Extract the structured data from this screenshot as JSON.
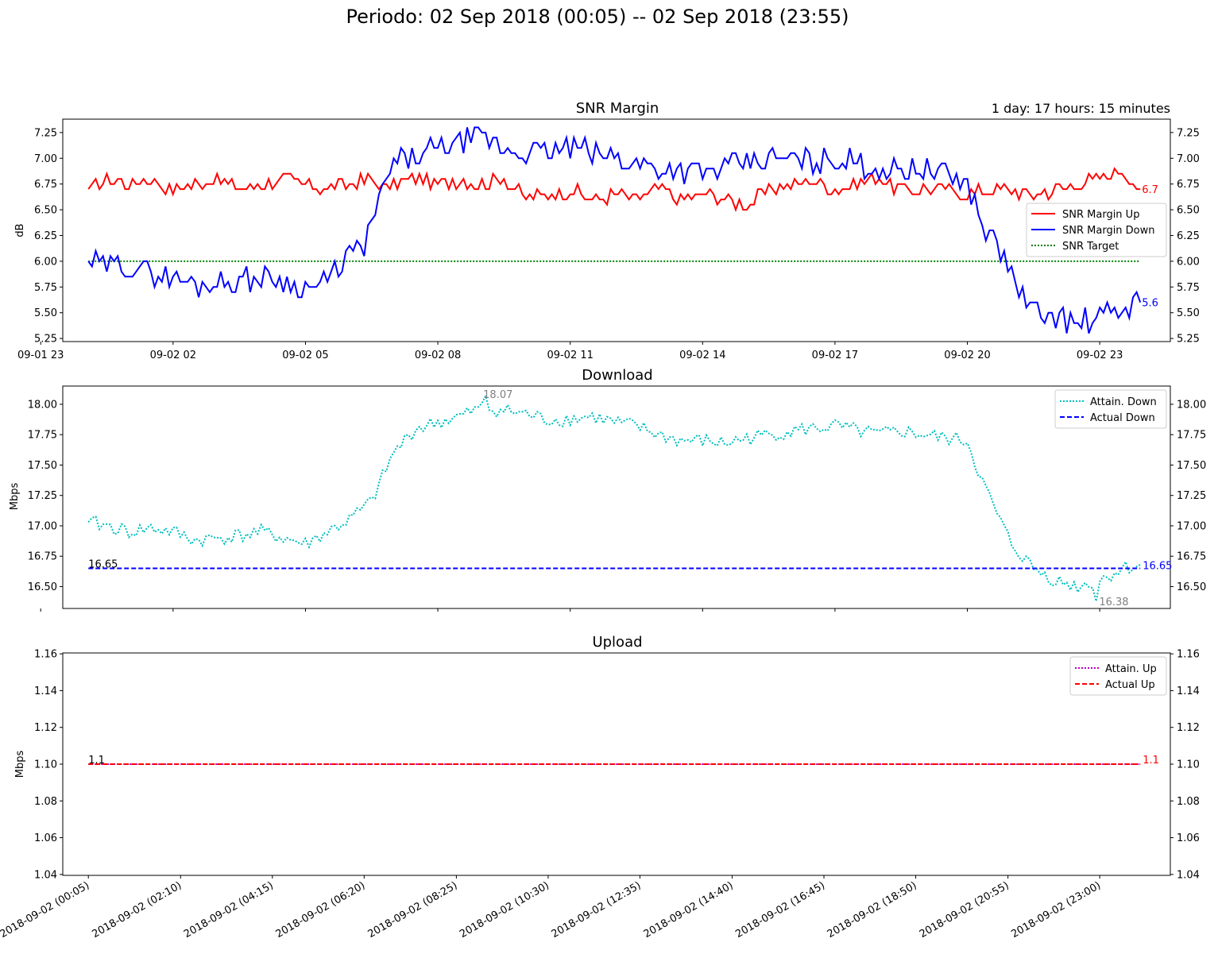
{
  "suptitle": "Periodo: 02 Sep 2018 (00:05) -- 02 Sep 2018 (23:55)",
  "colors": {
    "snr_up": "#ff0000",
    "snr_down": "#0000ff",
    "snr_target": "#008000",
    "attain_down": "#00bfbf",
    "actual_down": "#0000ff",
    "attain_up": "#bf00bf",
    "actual_up": "#ff0000",
    "annot_gray": "#808080"
  },
  "chart_data": [
    {
      "type": "line",
      "title": "SNR Margin",
      "uptime_label": "1 day: 17 hours: 15 minutes",
      "ylabel": "dB",
      "xlim": [
        -0.5,
        24.6
      ],
      "ylim": [
        5.22,
        7.38
      ],
      "xticks": [
        -1,
        2,
        5,
        8,
        11,
        14,
        17,
        20,
        23
      ],
      "xticklabels": [
        "09-01 23",
        "09-02 02",
        "09-02 05",
        "09-02 08",
        "09-02 11",
        "09-02 14",
        "09-02 17",
        "09-02 20",
        "09-02 23"
      ],
      "yticks": [
        5.25,
        5.5,
        5.75,
        6.0,
        6.25,
        6.5,
        6.75,
        7.0,
        7.25
      ],
      "yticklabels": [
        "5.25",
        "5.50",
        "5.75",
        "6.00",
        "6.25",
        "6.50",
        "6.75",
        "7.00",
        "7.25"
      ],
      "legend": [
        "SNR Margin Up",
        "SNR Margin Down",
        "SNR Target"
      ],
      "end_labels": {
        "up": "6.7",
        "down": "5.6"
      },
      "series": [
        {
          "name": "SNR Margin Up",
          "style": "solid",
          "x": [
            0.08,
            0.5,
            1.0,
            1.5,
            2.0,
            2.5,
            3.0,
            3.5,
            4.0,
            4.5,
            5.0,
            5.5,
            6.0,
            6.5,
            6.8,
            7.0,
            7.5,
            8.0,
            8.5,
            9.0,
            9.5,
            10.0,
            10.5,
            11.0,
            11.5,
            12.0,
            12.5,
            13.0,
            13.5,
            14.0,
            14.5,
            15.0,
            15.5,
            16.0,
            16.5,
            17.0,
            17.5,
            18.0,
            18.5,
            19.0,
            19.5,
            20.0,
            20.5,
            21.0,
            21.5,
            22.0,
            22.5,
            23.0,
            23.5,
            23.92
          ],
          "values": [
            6.7,
            6.8,
            6.75,
            6.8,
            6.7,
            6.75,
            6.8,
            6.7,
            6.75,
            6.8,
            6.75,
            6.7,
            6.75,
            6.8,
            6.7,
            6.75,
            6.8,
            6.75,
            6.8,
            6.75,
            6.8,
            6.6,
            6.65,
            6.7,
            6.6,
            6.65,
            6.6,
            6.7,
            6.6,
            6.65,
            6.6,
            6.55,
            6.7,
            6.75,
            6.8,
            6.7,
            6.75,
            6.8,
            6.7,
            6.7,
            6.7,
            6.65,
            6.7,
            6.7,
            6.65,
            6.7,
            6.75,
            6.8,
            6.9,
            6.7
          ]
        },
        {
          "name": "SNR Margin Down",
          "style": "solid",
          "x": [
            0.08,
            0.5,
            1.0,
            1.5,
            2.0,
            2.5,
            3.0,
            3.5,
            4.0,
            4.5,
            5.0,
            5.5,
            6.0,
            6.3,
            6.6,
            7.0,
            7.5,
            8.0,
            8.5,
            9.0,
            9.5,
            10.0,
            10.5,
            11.0,
            11.5,
            12.0,
            12.5,
            13.0,
            13.5,
            14.0,
            14.5,
            15.0,
            15.5,
            16.0,
            16.5,
            17.0,
            17.5,
            18.0,
            18.5,
            19.0,
            19.5,
            20.0,
            20.3,
            20.6,
            21.0,
            21.3,
            21.6,
            22.0,
            22.5,
            23.0,
            23.5,
            23.92
          ],
          "values": [
            6.0,
            5.95,
            5.95,
            5.9,
            5.85,
            5.75,
            5.8,
            5.8,
            5.85,
            5.8,
            5.75,
            5.8,
            6.1,
            6.1,
            6.5,
            6.95,
            7.0,
            7.1,
            7.15,
            7.2,
            7.1,
            7.05,
            7.05,
            7.1,
            7.05,
            7.0,
            6.95,
            6.9,
            6.9,
            6.85,
            6.9,
            6.95,
            7.0,
            7.0,
            6.95,
            7.0,
            6.95,
            6.9,
            6.9,
            6.9,
            6.85,
            6.75,
            6.4,
            6.2,
            5.9,
            5.6,
            5.5,
            5.45,
            5.4,
            5.45,
            5.55,
            5.6
          ]
        },
        {
          "name": "SNR Target",
          "style": "dotted",
          "x": [
            0.08,
            23.92
          ],
          "values": [
            6.0,
            6.0
          ]
        }
      ]
    },
    {
      "type": "line",
      "title": "Download",
      "ylabel": "Mbps",
      "xlim": [
        -0.5,
        24.6
      ],
      "ylim": [
        16.32,
        18.15
      ],
      "yticks": [
        16.5,
        16.75,
        17.0,
        17.25,
        17.5,
        17.75,
        18.0
      ],
      "yticklabels": [
        "16.50",
        "16.75",
        "17.00",
        "17.25",
        "17.50",
        "17.75",
        "18.00"
      ],
      "legend": [
        "Attain. Down",
        "Actual Down"
      ],
      "annotations": {
        "max": "18.07",
        "min": "16.38",
        "start": "16.65",
        "end": "16.65"
      },
      "max_point": {
        "x": 9.1,
        "value": 18.07
      },
      "min_point": {
        "x": 22.95,
        "value": 16.38
      },
      "series": [
        {
          "name": "Attain. Down",
          "style": "dotted",
          "x": [
            0.08,
            0.5,
            1.0,
            1.5,
            2.0,
            2.5,
            3.0,
            3.5,
            4.0,
            4.5,
            5.0,
            5.5,
            6.0,
            6.5,
            7.0,
            7.5,
            8.0,
            8.5,
            9.0,
            9.5,
            10.0,
            10.5,
            11.0,
            11.5,
            12.0,
            12.5,
            13.0,
            13.5,
            14.0,
            14.5,
            15.0,
            15.5,
            16.0,
            16.5,
            17.0,
            17.5,
            18.0,
            18.5,
            19.0,
            19.5,
            20.0,
            20.3,
            20.6,
            21.0,
            21.5,
            22.0,
            22.5,
            23.0,
            23.5,
            23.92
          ],
          "values": [
            17.03,
            17.0,
            16.95,
            16.98,
            16.95,
            16.88,
            16.9,
            16.92,
            16.95,
            16.9,
            16.85,
            16.95,
            17.05,
            17.2,
            17.6,
            17.8,
            17.85,
            17.9,
            17.97,
            17.95,
            17.92,
            17.87,
            17.88,
            17.9,
            17.85,
            17.82,
            17.75,
            17.7,
            17.7,
            17.68,
            17.72,
            17.75,
            17.78,
            17.8,
            17.82,
            17.78,
            17.75,
            17.78,
            17.75,
            17.72,
            17.7,
            17.4,
            17.15,
            16.85,
            16.65,
            16.55,
            16.5,
            16.55,
            16.65,
            16.68
          ]
        },
        {
          "name": "Actual Down",
          "style": "dashed",
          "x": [
            0.08,
            23.92
          ],
          "values": [
            16.65,
            16.65
          ]
        }
      ]
    },
    {
      "type": "line",
      "title": "Upload",
      "ylabel": "Mbps",
      "xlim": [
        -0.5,
        24.6
      ],
      "ylim": [
        1.0395,
        1.1605
      ],
      "yticks": [
        1.04,
        1.06,
        1.08,
        1.1,
        1.12,
        1.14,
        1.16
      ],
      "yticklabels": [
        "1.04",
        "1.06",
        "1.08",
        "1.10",
        "1.12",
        "1.14",
        "1.16"
      ],
      "xticks": [
        0.08,
        2.17,
        4.25,
        6.33,
        8.42,
        10.5,
        12.58,
        14.67,
        16.75,
        18.83,
        20.92,
        23.0
      ],
      "xticklabels": [
        "2018-09-02 (00:05)",
        "2018-09-02 (02:10)",
        "2018-09-02 (04:15)",
        "2018-09-02 (06:20)",
        "2018-09-02 (08:25)",
        "2018-09-02 (10:30)",
        "2018-09-02 (12:35)",
        "2018-09-02 (14:40)",
        "2018-09-02 (16:45)",
        "2018-09-02 (18:50)",
        "2018-09-02 (20:55)",
        "2018-09-02 (23:00)"
      ],
      "legend": [
        "Attain. Up",
        "Actual Up"
      ],
      "annotations": {
        "start": "1.1",
        "end": "1.1"
      },
      "series": [
        {
          "name": "Attain. Up",
          "style": "dotted",
          "x": [
            0.08,
            23.92
          ],
          "values": [
            1.1,
            1.1
          ]
        },
        {
          "name": "Actual Up",
          "style": "dashed",
          "x": [
            0.08,
            23.92
          ],
          "values": [
            1.1,
            1.1
          ]
        }
      ]
    }
  ]
}
